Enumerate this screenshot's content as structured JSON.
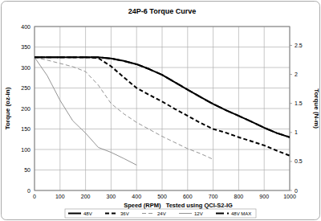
{
  "chart_data": {
    "type": "line",
    "title": "24P-6 Torque Curve",
    "xlabel": "Speed (RPM)   Tested using QCI-S2-IG",
    "ylabel": "Torque (oz-in)",
    "y2label": "Torque (N-m)",
    "x": [
      0,
      50,
      100,
      150,
      200,
      250,
      300,
      350,
      400,
      450,
      500,
      550,
      600,
      650,
      700,
      750,
      800,
      850,
      900,
      950,
      1000
    ],
    "series": [
      {
        "name": "48V",
        "color": "#000000",
        "line_style": "solid",
        "values": [
          325,
          325,
          325,
          325,
          325,
          325,
          322,
          316,
          308,
          296,
          282,
          264,
          246,
          228,
          211,
          196,
          182,
          168,
          153,
          140,
          130
        ]
      },
      {
        "name": "36V",
        "color": "#000000",
        "line_style": "dashed",
        "values": [
          325,
          325,
          325,
          325,
          325,
          323,
          303,
          276,
          250,
          233,
          217,
          199,
          182,
          165,
          150,
          141,
          130,
          120,
          110,
          97,
          85
        ]
      },
      {
        "name": "24V",
        "color": "#888888",
        "line_style": "dashed",
        "values": [
          325,
          318,
          310,
          302,
          290,
          257,
          212,
          187,
          166,
          149,
          132,
          117,
          102,
          90,
          76,
          null,
          null,
          null,
          null,
          null,
          null
        ]
      },
      {
        "name": "12V",
        "color": "#888888",
        "line_style": "solid",
        "values": [
          325,
          280,
          220,
          170,
          140,
          105,
          93,
          78,
          62,
          null,
          null,
          null,
          null,
          null,
          null,
          null,
          null,
          null,
          null,
          null,
          null
        ]
      },
      {
        "name": "48V MAX",
        "color": "#000000",
        "line_style": "long_dashed",
        "values": [
          325,
          325,
          325,
          325,
          325,
          325,
          322,
          316,
          308,
          296,
          282,
          264,
          246,
          228,
          211,
          196,
          182,
          168,
          153,
          140,
          130
        ]
      }
    ],
    "xlim": [
      0,
      1000
    ],
    "xticks": [
      0,
      100,
      200,
      300,
      400,
      500,
      600,
      700,
      800,
      900,
      1000
    ],
    "ylim": [
      0,
      400
    ],
    "yticks": [
      0,
      50,
      100,
      150,
      200,
      250,
      300,
      350,
      400
    ],
    "y2lim": [
      0,
      2.825
    ],
    "y2ticks": [
      0,
      0.5,
      1,
      1.5,
      2,
      2.5
    ],
    "grid": true,
    "legend": "bottom"
  }
}
